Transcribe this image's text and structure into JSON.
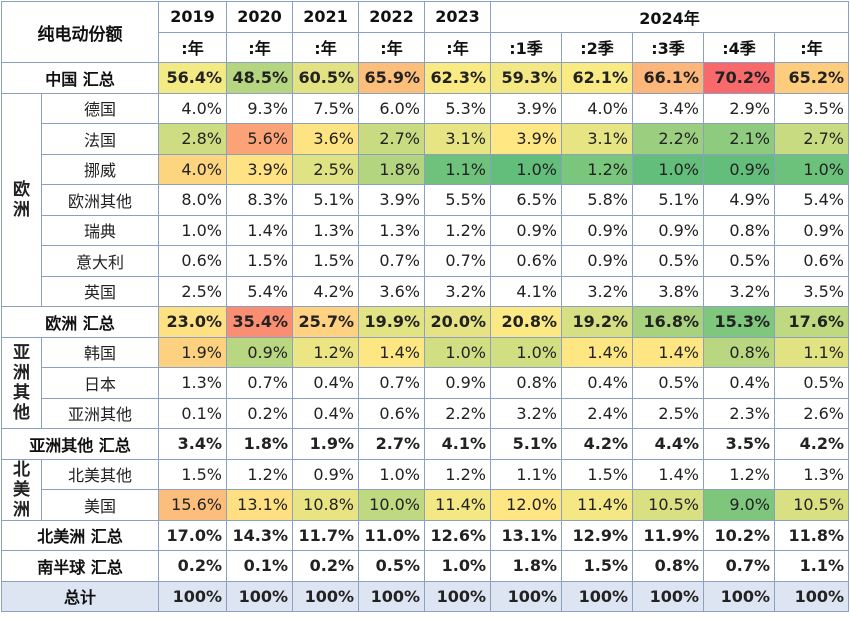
{
  "chart_data": {
    "type": "table",
    "title": "纯电动份额",
    "columns": [
      {
        "top": "2019",
        "sub": ":年"
      },
      {
        "top": "2020",
        "sub": ":年"
      },
      {
        "top": "2021",
        "sub": ":年"
      },
      {
        "top": "2022",
        "sub": ":年"
      },
      {
        "top": "2023",
        "sub": ":年"
      },
      {
        "top": "2024年",
        "sub": ":1季"
      },
      {
        "top": "",
        "sub": ":2季"
      },
      {
        "top": "",
        "sub": ":3季"
      },
      {
        "top": "",
        "sub": ":4季"
      },
      {
        "top": "",
        "sub": ":年"
      }
    ],
    "rows": [
      {
        "kind": "total",
        "label": "中国 汇总",
        "values": [
          "56.4%",
          "48.5%",
          "60.5%",
          "65.9%",
          "62.3%",
          "59.3%",
          "62.1%",
          "66.1%",
          "70.2%",
          "65.2%"
        ],
        "colors": [
          "#f3ea84",
          "#b5d580",
          "#e3e283",
          "#fcbf7b",
          "#faea84",
          "#f3e884",
          "#faea84",
          "#fcb67a",
          "#f8696b",
          "#fdcc7d"
        ]
      },
      {
        "kind": "item",
        "group": "欧洲",
        "label": "德国",
        "values": [
          "4.0%",
          "9.3%",
          "7.5%",
          "6.0%",
          "5.3%",
          "3.9%",
          "4.0%",
          "3.4%",
          "2.9%",
          "3.5%"
        ],
        "colors": [
          "",
          "",
          "",
          "",
          "",
          "",
          "",
          "",
          "",
          ""
        ]
      },
      {
        "kind": "item",
        "group": "欧洲",
        "label": "法国",
        "values": [
          "2.8%",
          "5.6%",
          "3.6%",
          "2.7%",
          "3.1%",
          "3.9%",
          "3.1%",
          "2.2%",
          "2.1%",
          "2.7%"
        ],
        "colors": [
          "#cfdd82",
          "#fba276",
          "#fee382",
          "#c9db81",
          "#e6e483",
          "#ffe784",
          "#e6e483",
          "#9bcf7f",
          "#8fcb7e",
          "#c9db81"
        ]
      },
      {
        "kind": "item",
        "group": "欧洲",
        "label": "挪威",
        "values": [
          "4.0%",
          "3.9%",
          "2.5%",
          "1.8%",
          "1.1%",
          "1.0%",
          "1.2%",
          "1.0%",
          "0.9%",
          "1.0%"
        ],
        "colors": [
          "#fdd57f",
          "#ffe283",
          "#e0e383",
          "#b3d580",
          "#6fc27c",
          "#63be7b",
          "#7ac67c",
          "#63be7b",
          "#63be7b",
          "#6cc17b"
        ]
      },
      {
        "kind": "item",
        "group": "欧洲",
        "label": "欧洲其他",
        "values": [
          "8.0%",
          "8.3%",
          "5.1%",
          "3.9%",
          "5.5%",
          "6.5%",
          "5.8%",
          "5.1%",
          "4.9%",
          "5.4%"
        ],
        "colors": [
          "",
          "",
          "",
          "",
          "",
          "",
          "",
          "",
          "",
          ""
        ]
      },
      {
        "kind": "item",
        "group": "欧洲",
        "label": "瑞典",
        "values": [
          "1.0%",
          "1.4%",
          "1.3%",
          "1.3%",
          "1.2%",
          "0.9%",
          "0.9%",
          "0.9%",
          "0.8%",
          "0.9%"
        ],
        "colors": [
          "",
          "",
          "",
          "",
          "",
          "",
          "",
          "",
          "",
          ""
        ]
      },
      {
        "kind": "item",
        "group": "欧洲",
        "label": "意大利",
        "values": [
          "0.6%",
          "1.5%",
          "1.5%",
          "0.7%",
          "0.7%",
          "0.6%",
          "0.9%",
          "0.5%",
          "0.5%",
          "0.6%"
        ],
        "colors": [
          "",
          "",
          "",
          "",
          "",
          "",
          "",
          "",
          "",
          ""
        ]
      },
      {
        "kind": "item",
        "group": "欧洲",
        "label": "英国",
        "values": [
          "2.5%",
          "5.4%",
          "4.2%",
          "3.6%",
          "3.2%",
          "4.1%",
          "3.2%",
          "3.8%",
          "3.2%",
          "3.5%"
        ],
        "colors": [
          "",
          "",
          "",
          "",
          "",
          "",
          "",
          "",
          "",
          ""
        ]
      },
      {
        "kind": "total",
        "label": "欧洲 汇总",
        "values": [
          "23.0%",
          "35.4%",
          "25.7%",
          "19.9%",
          "20.0%",
          "20.8%",
          "19.2%",
          "16.8%",
          "15.3%",
          "17.6%"
        ],
        "colors": [
          "#fee182",
          "#fa8e72",
          "#fed280",
          "#e2e383",
          "#e5e383",
          "#fbe983",
          "#d6e082",
          "#a9d27f",
          "#7fc77d",
          "#bed980"
        ]
      },
      {
        "kind": "item",
        "group": "亚洲其他",
        "label": "韩国",
        "values": [
          "1.9%",
          "0.9%",
          "1.2%",
          "1.4%",
          "1.0%",
          "1.0%",
          "1.4%",
          "1.4%",
          "0.8%",
          "1.1%"
        ],
        "colors": [
          "#fdd17f",
          "#b9d780",
          "#ebe583",
          "#fee683",
          "#d2de82",
          "#d2de82",
          "#fee683",
          "#fee683",
          "#b9d780",
          "#e1e383"
        ]
      },
      {
        "kind": "item",
        "group": "亚洲其他",
        "label": "日本",
        "values": [
          "1.3%",
          "0.7%",
          "0.4%",
          "0.7%",
          "0.9%",
          "0.8%",
          "0.4%",
          "0.5%",
          "0.4%",
          "0.5%"
        ],
        "colors": [
          "",
          "",
          "",
          "",
          "",
          "",
          "",
          "",
          "",
          ""
        ]
      },
      {
        "kind": "item",
        "group": "亚洲其他",
        "label": "亚洲其他",
        "values": [
          "0.1%",
          "0.2%",
          "0.4%",
          "0.6%",
          "2.2%",
          "3.2%",
          "2.4%",
          "2.5%",
          "2.3%",
          "2.6%"
        ],
        "colors": [
          "",
          "",
          "",
          "",
          "",
          "",
          "",
          "",
          "",
          ""
        ]
      },
      {
        "kind": "sum",
        "label": "亚洲其他 汇总",
        "values": [
          "3.4%",
          "1.8%",
          "1.9%",
          "2.7%",
          "4.1%",
          "5.1%",
          "4.2%",
          "4.4%",
          "3.5%",
          "4.2%"
        ]
      },
      {
        "kind": "item",
        "group": "北美洲",
        "label": "北美其他",
        "values": [
          "1.5%",
          "1.2%",
          "0.9%",
          "1.0%",
          "1.2%",
          "1.1%",
          "1.5%",
          "1.4%",
          "1.2%",
          "1.3%"
        ],
        "colors": [
          "",
          "",
          "",
          "",
          "",
          "",
          "",
          "",
          "",
          ""
        ]
      },
      {
        "kind": "item",
        "group": "北美洲",
        "label": "美国",
        "values": [
          "15.6%",
          "13.1%",
          "10.8%",
          "10.0%",
          "11.4%",
          "12.0%",
          "11.4%",
          "10.5%",
          "9.0%",
          "10.5%"
        ],
        "colors": [
          "#fbbe7b",
          "#fee082",
          "#e9e483",
          "#bfd981",
          "#f3e884",
          "#fee683",
          "#f3e884",
          "#d8e082",
          "#7ec67c",
          "#d8e082"
        ]
      },
      {
        "kind": "sum",
        "label": "北美洲 汇总",
        "values": [
          "17.0%",
          "14.3%",
          "11.7%",
          "11.0%",
          "12.6%",
          "13.1%",
          "12.9%",
          "11.9%",
          "10.2%",
          "11.8%"
        ]
      },
      {
        "kind": "sum",
        "label": "南半球 汇总",
        "values": [
          "0.2%",
          "0.1%",
          "0.2%",
          "0.5%",
          "1.0%",
          "1.8%",
          "1.5%",
          "0.8%",
          "0.7%",
          "1.1%"
        ]
      },
      {
        "kind": "grand",
        "label": "总计",
        "values": [
          "100%",
          "100%",
          "100%",
          "100%",
          "100%",
          "100%",
          "100%",
          "100%",
          "100%",
          "100%"
        ]
      }
    ],
    "groups": {
      "欧洲": [
        "欧",
        "洲"
      ],
      "亚洲其他": [
        "亚",
        "洲",
        "其",
        "他"
      ],
      "北美洲": [
        "北",
        "美",
        "洲"
      ]
    }
  }
}
